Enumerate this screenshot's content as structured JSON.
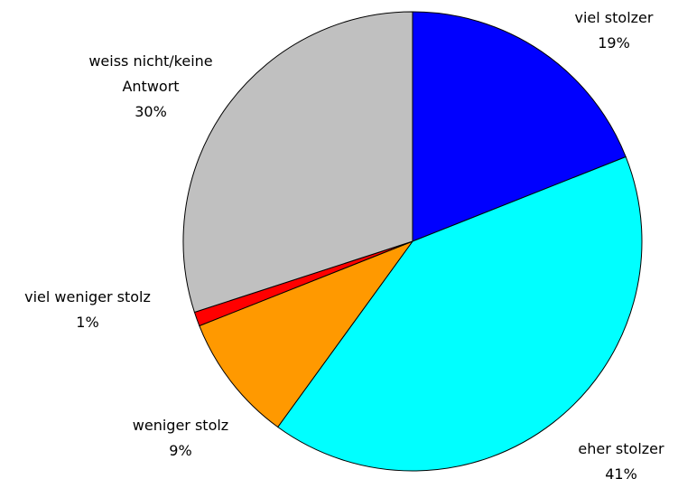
{
  "chart_data": {
    "type": "pie",
    "categories": [
      "viel stolzer",
      "eher stolzer",
      "weniger stolz",
      "viel weniger stolz",
      "weiss nicht/keine Antwort"
    ],
    "values": [
      19,
      41,
      9,
      1,
      30
    ],
    "value_labels": [
      "19%",
      "41%",
      "9%",
      "1%",
      "30%"
    ],
    "colors": [
      "#0000ff",
      "#00ffff",
      "#ff9900",
      "#ff0000",
      "#c0c0c0"
    ]
  }
}
